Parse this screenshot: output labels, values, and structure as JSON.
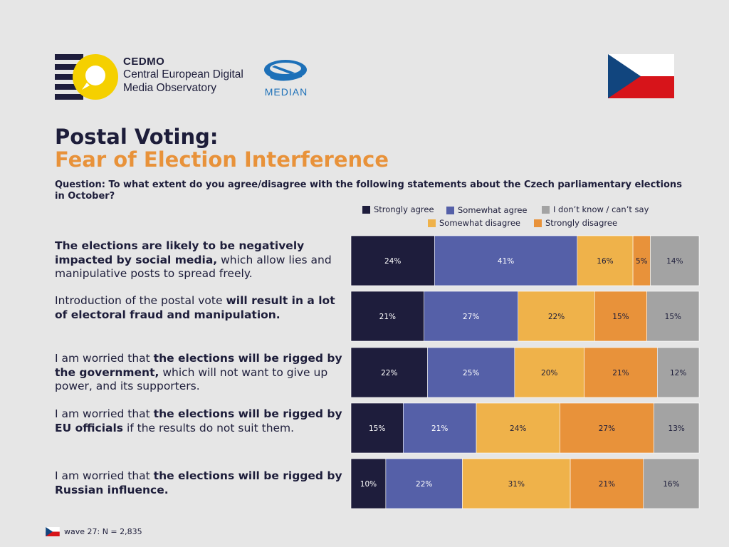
{
  "header": {
    "cedmo": {
      "brand": "CEDMO",
      "line1": "Central European Digital",
      "line2": "Media Observatory"
    },
    "median": {
      "label": "MEDIAN"
    },
    "flag_icon": "czech-flag-icon"
  },
  "title": {
    "line1": "Postal Voting:",
    "line2": "Fear of Election Interference"
  },
  "question": "Question: To what extent do you agree/disagree with the following statements about the Czech parliamentary elections in October?",
  "footer": {
    "text": "wave 27: N = 2,835"
  },
  "colors": {
    "strongly_agree": "#1e1d3c",
    "somewhat_agree": "#5560a8",
    "dont_know": "#a3a3a3",
    "somewhat_disagree": "#efb24a",
    "strongly_disagree": "#e8923a",
    "title_accent": "#e8923a"
  },
  "chart_data": {
    "type": "bar",
    "orientation": "horizontal-stacked-100",
    "categories": [
      {
        "parts": [
          {
            "text": "The elections are likely to be negatively impacted by social media,",
            "bold": true
          },
          {
            "text": " which allow lies and manipulative posts to spread freely.",
            "bold": false
          }
        ]
      },
      {
        "parts": [
          {
            "text": "Introduction of the postal vote ",
            "bold": false
          },
          {
            "text": "will result in a lot of electoral fraud and manipulation.",
            "bold": true
          }
        ]
      },
      {
        "parts": [
          {
            "text": "I am worried that ",
            "bold": false
          },
          {
            "text": "the elections will be rigged by the government,",
            "bold": true
          },
          {
            "text": " which will not want to give up power, and its supporters.",
            "bold": false
          }
        ]
      },
      {
        "parts": [
          {
            "text": "I am worried that ",
            "bold": false
          },
          {
            "text": "the elections will be rigged by EU officials",
            "bold": true
          },
          {
            "text": " if the results do not suit them.",
            "bold": false
          }
        ]
      },
      {
        "parts": [
          {
            "text": "I am worried that ",
            "bold": false
          },
          {
            "text": "the elections will be rigged by Russian influence.",
            "bold": true
          }
        ]
      }
    ],
    "series": [
      {
        "name": "Strongly agree",
        "key": "strongly_agree",
        "values": [
          24,
          21,
          22,
          15,
          10
        ],
        "labels": [
          "24%",
          "21%",
          "22%",
          "15%",
          "10%"
        ]
      },
      {
        "name": "Somewhat agree",
        "key": "somewhat_agree",
        "values": [
          41,
          27,
          25,
          21,
          22
        ],
        "labels": [
          "41%",
          "27%",
          "25%",
          "21%",
          "22%"
        ]
      },
      {
        "name": "Somewhat disagree",
        "key": "somewhat_disagree",
        "values": [
          16,
          22,
          20,
          24,
          31
        ],
        "labels": [
          "16%",
          "22%",
          "20%",
          "24%",
          "31%"
        ]
      },
      {
        "name": "Strongly disagree",
        "key": "strongly_disagree",
        "values": [
          5,
          15,
          21,
          27,
          21
        ],
        "labels": [
          "5%",
          "15%",
          "21%",
          "27%",
          "21%"
        ]
      },
      {
        "name": "I don’t know / can’t say",
        "key": "dont_know",
        "values": [
          14,
          15,
          12,
          13,
          16
        ],
        "labels": [
          "14%",
          "15%",
          "12%",
          "13%",
          "16%"
        ]
      }
    ],
    "legend_order": [
      "strongly_agree",
      "somewhat_agree",
      "dont_know",
      "somewhat_disagree",
      "strongly_disagree"
    ],
    "legend_placement": "top-right",
    "grid": false
  }
}
